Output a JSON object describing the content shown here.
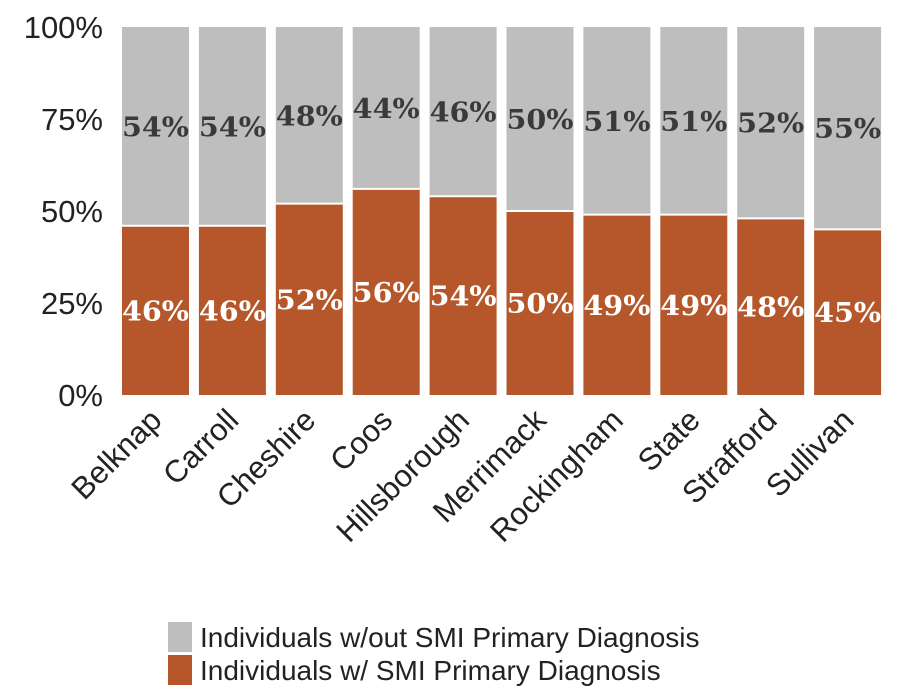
{
  "chart_data": {
    "type": "bar",
    "stacked": true,
    "categories": [
      "Belknap",
      "Carroll",
      "Cheshire",
      "Coos",
      "Hillsborough",
      "Merrimack",
      "Rockingham",
      "State",
      "Strafford",
      "Sullivan"
    ],
    "series": [
      {
        "name": "Individuals w/ SMI Primary Diagnosis",
        "color": "#b5572a",
        "values": [
          46,
          46,
          52,
          56,
          54,
          50,
          49,
          49,
          48,
          45
        ],
        "labels": [
          "46%",
          "46%",
          "52%",
          "56%",
          "54%",
          "50%",
          "49%",
          "49%",
          "48%",
          "45%"
        ]
      },
      {
        "name": "Individuals w/out SMI Primary Diagnosis",
        "color": "#bebebe",
        "values": [
          54,
          54,
          48,
          44,
          46,
          50,
          51,
          51,
          52,
          55
        ],
        "labels": [
          "54%",
          "54%",
          "48%",
          "44%",
          "46%",
          "50%",
          "51%",
          "51%",
          "52%",
          "55%"
        ]
      }
    ],
    "ylim": [
      0,
      100
    ],
    "yticks": [
      "0%",
      "25%",
      "50%",
      "75%",
      "100%"
    ],
    "ytick_values": [
      0,
      25,
      50,
      75,
      100
    ],
    "grid": false,
    "legend_position": "bottom",
    "legend_order": [
      "Individuals w/out SMI Primary Diagnosis",
      "Individuals w/ SMI Primary Diagnosis"
    ]
  }
}
